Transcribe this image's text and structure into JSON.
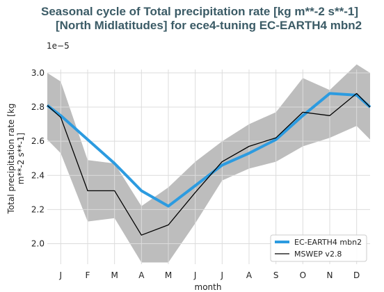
{
  "chart_data": {
    "type": "line",
    "title_line1": "Seasonal cycle of Total precipitation rate [kg m**-2 s**-1]",
    "title_line2": "[North Midlatitudes] for ece4-tuning EC-EARTH4 mbn2",
    "offset_label": "1e−5",
    "xlabel": "month",
    "ylabel_line1": "Total precipitation rate [kg",
    "ylabel_line2": "m**-2 s**-1]",
    "categories": [
      "J",
      "F",
      "M",
      "A",
      "M",
      "J",
      "J",
      "A",
      "S",
      "O",
      "N",
      "D"
    ],
    "ylim": [
      1.88,
      3.02
    ],
    "y_ticks": [
      "2.0",
      "2.2",
      "2.4",
      "2.6",
      "2.8",
      "3.0"
    ],
    "y_tick_values": [
      2.0,
      2.2,
      2.4,
      2.6,
      2.8,
      3.0
    ],
    "grid": true,
    "legend_position": "lower-right",
    "band": {
      "color": "#bdbdbd",
      "upper_x": [
        0.5,
        1,
        2,
        3,
        4,
        5,
        6,
        7,
        8,
        9,
        10,
        11,
        12,
        12.5
      ],
      "upper": [
        3.0,
        2.95,
        2.49,
        2.47,
        2.22,
        2.33,
        2.48,
        2.6,
        2.7,
        2.77,
        2.97,
        2.9,
        3.05,
        3.0
      ],
      "lower_x": [
        0.5,
        1,
        2,
        3,
        4,
        5,
        6,
        7,
        8,
        9,
        10,
        11,
        12,
        12.5
      ],
      "lower": [
        2.61,
        2.53,
        2.13,
        2.15,
        1.89,
        1.89,
        2.12,
        2.37,
        2.44,
        2.48,
        2.57,
        2.62,
        2.69,
        2.61
      ]
    },
    "series": [
      {
        "name": "EC-EARTH4 mbn2",
        "color": "#2c9be0",
        "x": [
          0.5,
          1,
          2,
          3,
          4,
          5,
          6,
          7,
          8,
          9,
          10,
          11,
          12,
          12.5
        ],
        "values": [
          2.81,
          2.75,
          2.61,
          2.47,
          2.31,
          2.22,
          2.34,
          2.46,
          2.53,
          2.61,
          2.75,
          2.88,
          2.87,
          2.8
        ]
      },
      {
        "name": "MSWEP v2.8",
        "color": "#000000",
        "x": [
          0.5,
          1,
          2,
          3,
          4,
          5,
          6,
          7,
          8,
          9,
          10,
          11,
          12,
          12.5
        ],
        "values": [
          2.81,
          2.74,
          2.31,
          2.31,
          2.05,
          2.11,
          2.3,
          2.48,
          2.57,
          2.62,
          2.77,
          2.75,
          2.88,
          2.8
        ]
      }
    ]
  }
}
